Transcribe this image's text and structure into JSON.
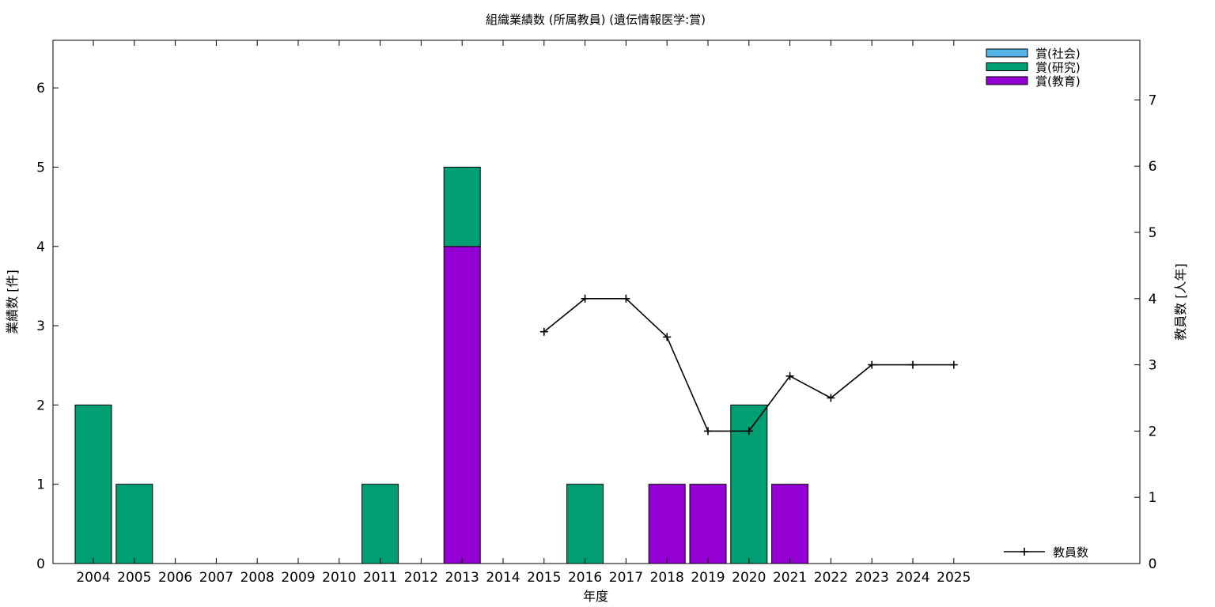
{
  "chart_data": {
    "type": "bar",
    "title": "組織業績数 (所属教員) (遺伝情報医学:賞)",
    "xlabel": "年度",
    "ylabel": "業績数 [件]",
    "y2label": "教員数 [人年]",
    "categories": [
      "2004",
      "2005",
      "2006",
      "2007",
      "2008",
      "2009",
      "2010",
      "2011",
      "2012",
      "2013",
      "2014",
      "2015",
      "2016",
      "2017",
      "2018",
      "2019",
      "2020",
      "2021",
      "2022",
      "2023",
      "2024",
      "2025"
    ],
    "ylim": [
      0,
      6.6
    ],
    "yticks": [
      0,
      1,
      2,
      3,
      4,
      5,
      6
    ],
    "y2lim": [
      0,
      7.9
    ],
    "y2ticks": [
      0,
      1,
      2,
      3,
      4,
      5,
      6,
      7
    ],
    "stacked": true,
    "series": [
      {
        "name": "賞(教育)",
        "color": "#9400d3",
        "values": [
          0,
          0,
          0,
          0,
          0,
          0,
          0,
          0,
          0,
          4,
          0,
          0,
          0,
          0,
          1,
          1,
          0,
          1,
          0,
          0,
          0,
          0
        ]
      },
      {
        "name": "賞(研究)",
        "color": "#009e73",
        "values": [
          2,
          1,
          0,
          0,
          0,
          0,
          0,
          1,
          0,
          1,
          0,
          0,
          1,
          0,
          0,
          0,
          2,
          0,
          0,
          0,
          0,
          0
        ]
      },
      {
        "name": "賞(社会)",
        "color": "#56b4e9",
        "values": [
          0,
          0,
          0,
          0,
          0,
          0,
          0,
          0,
          0,
          0,
          0,
          0,
          0,
          0,
          0,
          0,
          0,
          0,
          0,
          0,
          0,
          0
        ]
      }
    ],
    "line_series": {
      "name": "教員数",
      "axis": "y2",
      "color": "#000000",
      "values": [
        null,
        null,
        null,
        null,
        null,
        null,
        null,
        null,
        null,
        null,
        null,
        3.5,
        4,
        4,
        3.42,
        2,
        2,
        2.83,
        2.5,
        3,
        3,
        3
      ]
    },
    "legend_top": "top-right",
    "legend_bottom": "bottom-right",
    "grid": false
  }
}
